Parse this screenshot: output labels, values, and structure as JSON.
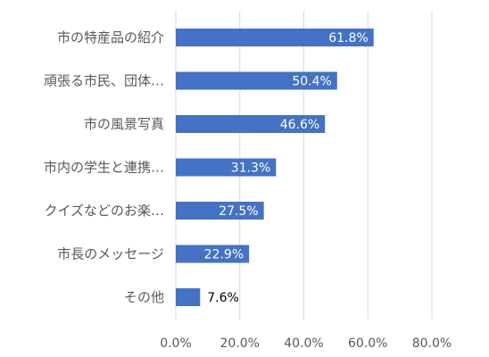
{
  "chart_data": {
    "type": "bar",
    "orientation": "horizontal",
    "categories": [
      "市の特産品の紹介",
      "頑張る市民、団体…",
      "市の風景写真",
      "市内の学生と連携…",
      "クイズなどのお楽…",
      "市長のメッセージ",
      "その他"
    ],
    "values": [
      61.8,
      50.4,
      46.6,
      31.3,
      27.5,
      22.9,
      7.6
    ],
    "data_labels": [
      "61.8%",
      "50.4%",
      "46.6%",
      "31.3%",
      "27.5%",
      "22.9%",
      "7.6%"
    ],
    "x_ticks": [
      "0.0%",
      "20.0%",
      "40.0%",
      "60.0%",
      "80.0%"
    ],
    "x_tick_values": [
      0,
      20,
      40,
      60,
      80
    ],
    "xlim": [
      0,
      80
    ],
    "grid": true,
    "legend": "none",
    "colors": {
      "bar": "#4472c4",
      "grid": "#d9d9d9"
    }
  }
}
